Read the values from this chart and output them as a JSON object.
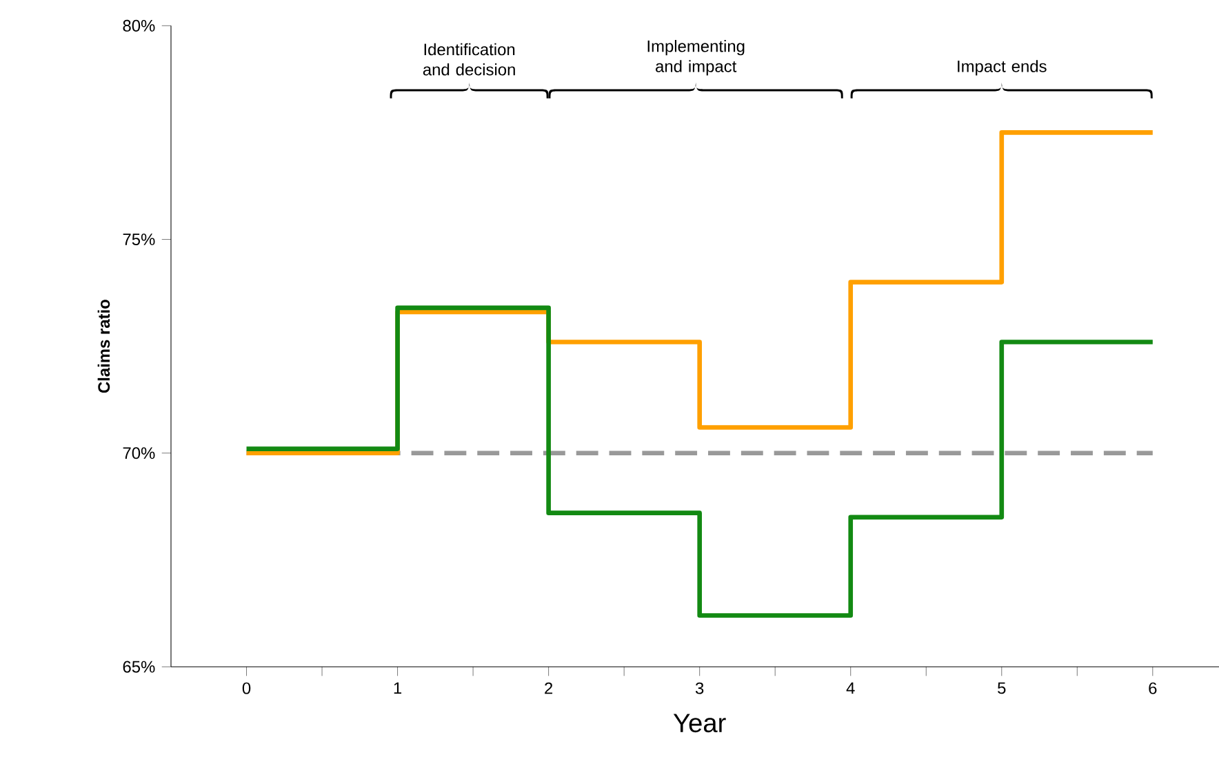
{
  "chart_data": {
    "type": "step",
    "xlabel": "Year",
    "ylabel": "Claims ratio",
    "x": [
      0,
      1,
      2,
      3,
      4,
      5,
      6
    ],
    "series": [
      {
        "color": "#ffa000",
        "values": [
          70.0,
          73.3,
          72.6,
          70.6,
          74.0,
          77.5,
          77.5
        ]
      },
      {
        "color": "#138a13",
        "values": [
          70.1,
          73.4,
          68.6,
          66.2,
          68.5,
          72.6,
          72.6
        ]
      }
    ],
    "xlim": [
      -0.5,
      6.5
    ],
    "ylim": [
      65,
      80
    ],
    "xticks": [
      0,
      {
        "value": 0.5,
        "label": null
      },
      1,
      {
        "value": 1.5,
        "label": null
      },
      2,
      {
        "value": 2.5,
        "label": null
      },
      3,
      {
        "value": 3.5,
        "label": null
      },
      4,
      {
        "value": 4.5,
        "label": null
      },
      5,
      {
        "value": 5.5,
        "label": null
      },
      6
    ],
    "yticks": [
      {
        "value": 65,
        "label": "65%"
      },
      {
        "value": 70,
        "label": "70%"
      },
      {
        "value": 75,
        "label": "75%"
      },
      {
        "value": 80,
        "label": "80%"
      }
    ],
    "ref_lines": [
      {
        "axis": "y",
        "value": 70,
        "color": "#999999",
        "line_style": "dashed"
      }
    ],
    "annotations": [
      "Identification and decision",
      "Implementing and impact",
      "Impact ends"
    ],
    "marker": "none"
  }
}
